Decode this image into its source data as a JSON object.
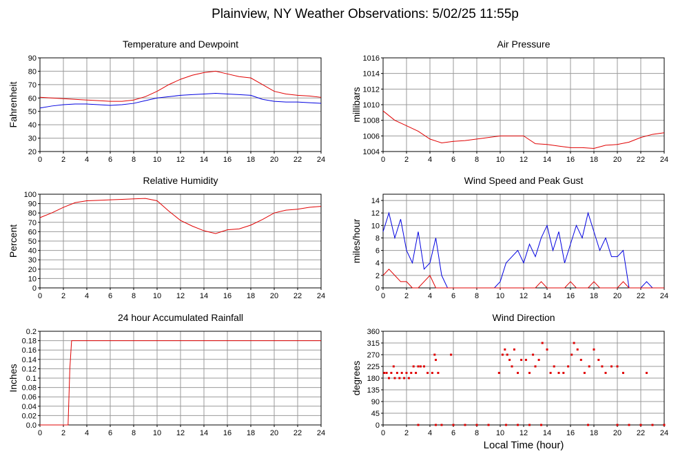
{
  "title": "Plainview, NY Weather Observations: 5/02/25 11:55p",
  "chart_data": [
    {
      "type": "line",
      "title": "Temperature and Dewpoint",
      "ylabel": "Fahrenheit",
      "grid": true,
      "xlim": [
        0,
        24
      ],
      "xticks": [
        0,
        2,
        4,
        6,
        8,
        10,
        12,
        14,
        16,
        18,
        20,
        22,
        24
      ],
      "ylim": [
        20,
        90
      ],
      "yticks": [
        20,
        30,
        40,
        50,
        60,
        70,
        80,
        90
      ],
      "x": [
        0,
        1,
        2,
        3,
        4,
        5,
        6,
        7,
        8,
        9,
        10,
        11,
        12,
        13,
        14,
        15,
        16,
        17,
        18,
        19,
        20,
        21,
        22,
        23,
        24
      ],
      "series": [
        {
          "color": "#e00000",
          "values": [
            60.5,
            60,
            59.5,
            59,
            58.5,
            58,
            57.5,
            57.5,
            58.5,
            61,
            65,
            70,
            74,
            77,
            79,
            80,
            78,
            76,
            75,
            70,
            65,
            63,
            62,
            61.5,
            60.5
          ]
        },
        {
          "color": "#0000e0",
          "values": [
            52.5,
            54,
            55,
            55.5,
            55.5,
            55,
            54.5,
            55,
            56,
            58,
            60,
            61,
            62,
            62.5,
            63,
            63.5,
            63,
            62.5,
            62,
            59,
            57.5,
            57,
            57,
            56.5,
            56
          ]
        }
      ]
    },
    {
      "type": "line",
      "title": "Air Pressure",
      "ylabel": "millibars",
      "grid": true,
      "xlim": [
        0,
        24
      ],
      "xticks": [
        0,
        2,
        4,
        6,
        8,
        10,
        12,
        14,
        16,
        18,
        20,
        22,
        24
      ],
      "ylim": [
        1004,
        1016
      ],
      "yticks": [
        1004,
        1006,
        1008,
        1010,
        1012,
        1014,
        1016
      ],
      "x": [
        0,
        1,
        2,
        3,
        4,
        5,
        6,
        7,
        8,
        9,
        10,
        11,
        12,
        13,
        14,
        15,
        16,
        17,
        18,
        19,
        20,
        21,
        22,
        23,
        24
      ],
      "series": [
        {
          "color": "#e00000",
          "values": [
            1009.2,
            1008,
            1007.3,
            1006.6,
            1005.6,
            1005.1,
            1005.3,
            1005.4,
            1005.6,
            1005.8,
            1006,
            1006,
            1006,
            1005,
            1004.9,
            1004.7,
            1004.5,
            1004.5,
            1004.4,
            1004.8,
            1004.9,
            1005.2,
            1005.8,
            1006.2,
            1006.4
          ]
        }
      ]
    },
    {
      "type": "line",
      "title": "Relative Humidity",
      "ylabel": "Percent",
      "grid": true,
      "xlim": [
        0,
        24
      ],
      "xticks": [
        0,
        2,
        4,
        6,
        8,
        10,
        12,
        14,
        16,
        18,
        20,
        22,
        24
      ],
      "ylim": [
        0,
        100
      ],
      "yticks": [
        0,
        10,
        20,
        30,
        40,
        50,
        60,
        70,
        80,
        90,
        100
      ],
      "x": [
        0,
        1,
        2,
        3,
        4,
        5,
        6,
        7,
        8,
        9,
        10,
        11,
        12,
        13,
        14,
        15,
        16,
        17,
        18,
        19,
        20,
        21,
        22,
        23,
        24
      ],
      "series": [
        {
          "color": "#e00000",
          "values": [
            75,
            80,
            86,
            91,
            93,
            93.5,
            94,
            94.5,
            95,
            95.5,
            93,
            82,
            72,
            66,
            61,
            58,
            62,
            63,
            67,
            73,
            80,
            83,
            84,
            86,
            87
          ]
        }
      ]
    },
    {
      "type": "line",
      "title": "Wind Speed and Peak Gust",
      "ylabel": "miles/hour",
      "grid": true,
      "xlim": [
        0,
        24
      ],
      "xticks": [
        0,
        2,
        4,
        6,
        8,
        10,
        12,
        14,
        16,
        18,
        20,
        22,
        24
      ],
      "ylim": [
        0,
        15
      ],
      "yticks": [
        0,
        2,
        4,
        6,
        8,
        10,
        12,
        14
      ],
      "x": [
        0,
        0.5,
        1,
        1.5,
        2,
        2.5,
        3,
        3.5,
        4,
        4.5,
        5,
        5.5,
        6,
        6.5,
        7,
        7.5,
        8,
        8.5,
        9,
        9.5,
        10,
        10.5,
        11,
        11.5,
        12,
        12.5,
        13,
        13.5,
        14,
        14.5,
        15,
        15.5,
        16,
        16.5,
        17,
        17.5,
        18,
        18.5,
        19,
        19.5,
        20,
        20.5,
        21,
        21.5,
        22,
        22.5,
        23,
        23.5,
        24
      ],
      "series": [
        {
          "color": "#0000e0",
          "values": [
            9,
            12,
            8,
            11,
            6,
            4,
            9,
            3,
            4,
            8,
            2,
            0,
            0,
            0,
            0,
            0,
            0,
            0,
            0,
            0,
            1,
            4,
            5,
            6,
            4,
            7,
            5,
            8,
            10,
            6,
            9,
            4,
            7,
            10,
            8,
            12,
            9,
            6,
            8,
            5,
            5,
            6,
            0,
            0,
            0,
            1,
            0,
            0,
            0
          ]
        },
        {
          "color": "#e00000",
          "values": [
            2,
            3,
            2,
            1,
            1,
            0,
            0,
            1,
            2,
            0,
            0,
            0,
            0,
            0,
            0,
            0,
            0,
            0,
            0,
            0,
            0,
            0,
            0,
            0,
            0,
            0,
            0,
            1,
            0,
            0,
            0,
            0,
            1,
            0,
            0,
            0,
            1,
            0,
            0,
            0,
            0,
            1,
            0,
            0,
            0,
            0,
            0,
            0,
            0
          ]
        }
      ]
    },
    {
      "type": "line",
      "title": "24 hour Accumulated Rainfall",
      "ylabel": "Inches",
      "grid": true,
      "xlim": [
        0,
        24
      ],
      "xticks": [
        0,
        2,
        4,
        6,
        8,
        10,
        12,
        14,
        16,
        18,
        20,
        22,
        24
      ],
      "ylim": [
        0,
        0.2
      ],
      "yticks": [
        {
          "value": 0,
          "label": "0.0"
        },
        0.02,
        0.04,
        0.06,
        0.08,
        0.1,
        0.12,
        0.14,
        0.16,
        0.18,
        0.2
      ],
      "x": [
        0,
        2.4,
        2.55,
        2.7,
        24
      ],
      "series": [
        {
          "color": "#e00000",
          "values": [
            0,
            0,
            0.12,
            0.18,
            0.18
          ]
        }
      ]
    },
    {
      "type": "scatter",
      "title": "Wind Direction",
      "ylabel": "degrees",
      "xlabel": "Local Time (hour)",
      "grid": true,
      "xlim": [
        0,
        24
      ],
      "xticks": [
        0,
        2,
        4,
        6,
        8,
        10,
        12,
        14,
        16,
        18,
        20,
        22,
        24
      ],
      "ylim": [
        0,
        360
      ],
      "yticks": [
        0,
        45,
        90,
        135,
        180,
        225,
        270,
        315,
        360
      ],
      "x": [
        0.1,
        0.3,
        0.5,
        0.7,
        0.9,
        1.0,
        1.2,
        1.4,
        1.6,
        1.8,
        2.0,
        2.2,
        2.4,
        2.6,
        2.8,
        3.0,
        3.0,
        3.2,
        3.5,
        3.8,
        4.2,
        4.4,
        4.5,
        4.5,
        4.7,
        5,
        5.8,
        6,
        7,
        8,
        9,
        9.9,
        10.2,
        10.4,
        10.5,
        10.6,
        10.8,
        11,
        11.2,
        11.5,
        11.5,
        11.8,
        12.2,
        12.5,
        12.5,
        12.8,
        13,
        13.3,
        13.5,
        13.6,
        14,
        14.3,
        14.6,
        15,
        15.4,
        15.8,
        16.1,
        16.3,
        16.6,
        16.9,
        17.2,
        17.5,
        17.6,
        18,
        18.4,
        18.7,
        19,
        19.5,
        20,
        20,
        20.5,
        21,
        22,
        22.5,
        23,
        24
      ],
      "series": [
        {
          "color": "#e00000",
          "values": [
            200,
            200,
            180,
            200,
            225,
            180,
            200,
            180,
            200,
            180,
            200,
            180,
            200,
            225,
            200,
            225,
            0,
            225,
            225,
            200,
            200,
            270,
            250,
            0,
            200,
            0,
            270,
            0,
            0,
            0,
            0,
            200,
            270,
            290,
            0,
            270,
            250,
            225,
            290,
            200,
            0,
            250,
            250,
            200,
            0,
            270,
            225,
            250,
            0,
            315,
            290,
            200,
            225,
            200,
            200,
            225,
            270,
            315,
            290,
            250,
            200,
            0,
            225,
            290,
            250,
            225,
            200,
            225,
            225,
            0,
            200,
            0,
            0,
            200,
            0,
            0
          ]
        }
      ]
    }
  ]
}
